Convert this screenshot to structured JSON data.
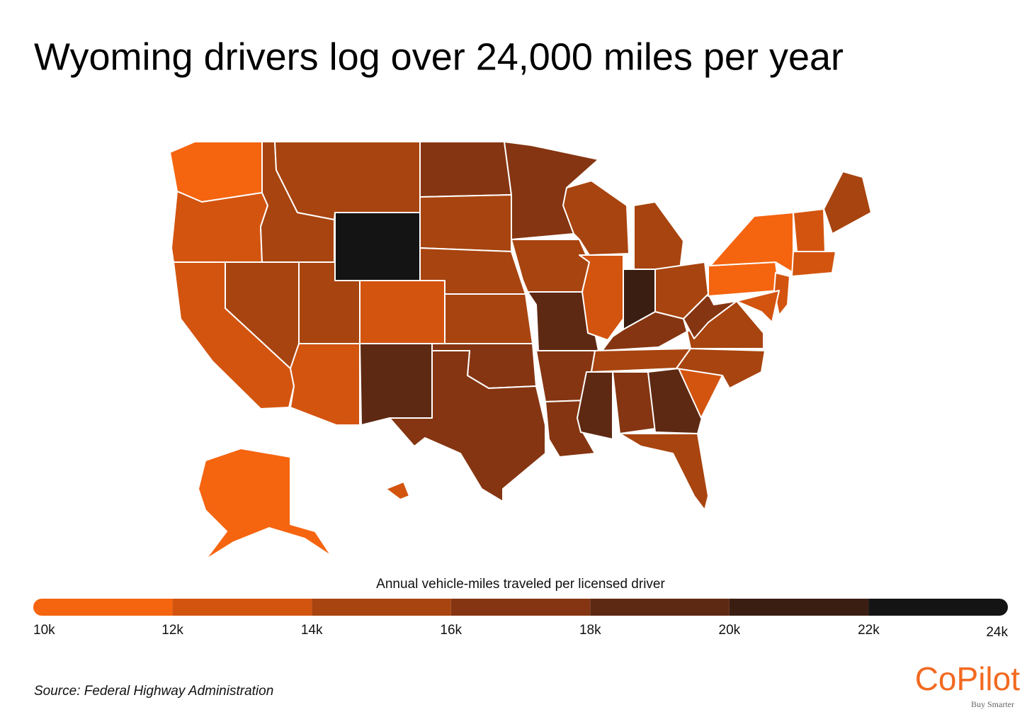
{
  "title": "Wyoming drivers log over 24,000 miles per year",
  "map": {
    "values": [
      11000,
      13000,
      13000,
      15000,
      15000,
      24500,
      15000,
      15000,
      13000,
      13000,
      19000,
      17000,
      15000,
      15000,
      15000,
      17000,
      17000,
      17000,
      15000,
      19000,
      17000,
      17000,
      15000,
      13000,
      21000,
      15000,
      15000,
      17000,
      15000,
      19000,
      17000,
      19000,
      15000,
      13000,
      15000,
      15000,
      17000,
      11000,
      11000,
      13000,
      13000,
      13000,
      15000,
      13000,
      11000,
      13000
    ]
  },
  "legend": {
    "title": "Annual vehicle-miles traveled per licensed driver",
    "ticks": [
      {
        "value": 10000,
        "label": "10k"
      },
      {
        "value": 12000,
        "label": "12k"
      },
      {
        "value": 14000,
        "label": "14k"
      },
      {
        "value": 16000,
        "label": "16k"
      },
      {
        "value": 18000,
        "label": "18k"
      },
      {
        "value": 20000,
        "label": "20k"
      },
      {
        "value": 22000,
        "label": "22k"
      },
      {
        "value": 24000,
        "label": "24k"
      }
    ],
    "colors": [
      "#f5640f",
      "#d3540f",
      "#a8440f",
      "#853511",
      "#5e2912",
      "#3a1e12",
      "#141414"
    ]
  },
  "source": "Source:  Federal Highway Administration",
  "logo": {
    "name": "CoPilot",
    "tagline": "Buy Smarter"
  }
}
